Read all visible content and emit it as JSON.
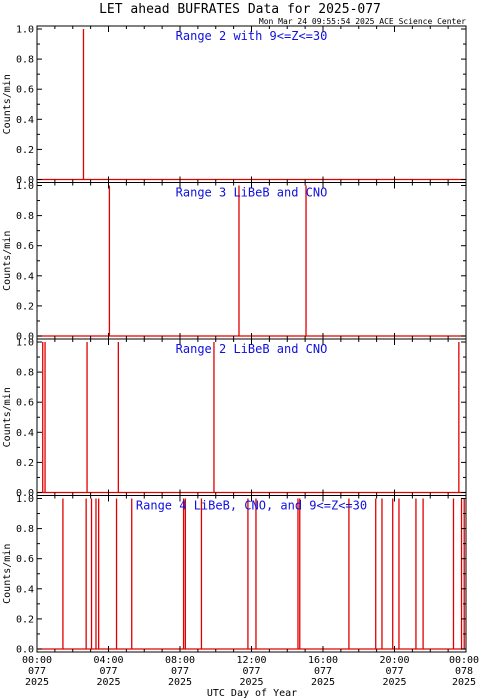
{
  "title": "LET ahead BUFRATES Data for 2025-077",
  "timestamp": "Mon Mar 24 09:55:54 2025 ACE Science Center",
  "colors": {
    "series": "#e00000",
    "panel_title": "#1010e0",
    "axes": "#000000"
  },
  "chart_data": [
    {
      "type": "line",
      "title": "Range 2 with 9<=Z<=30",
      "ylabel": "Counts/min",
      "ylim": [
        0,
        1.0
      ],
      "y_ticks": [
        "0.0",
        "0.2",
        "0.4",
        "0.6",
        "0.8",
        "1.0"
      ],
      "xlim": [
        0,
        24
      ],
      "x_unit": "hours UTC",
      "spikes": [
        {
          "x": 2.6,
          "y": 1.0
        }
      ]
    },
    {
      "type": "line",
      "title": "Range 3 LiBeB and CNO",
      "ylabel": "Counts/min",
      "ylim": [
        0,
        1.0
      ],
      "y_ticks": [
        "0.0",
        "0.2",
        "0.4",
        "0.6",
        "0.8",
        "1.0"
      ],
      "xlim": [
        0,
        24
      ],
      "x_unit": "hours UTC",
      "spikes": [
        {
          "x": 4.05,
          "y": 1.0
        },
        {
          "x": 11.3,
          "y": 1.0
        },
        {
          "x": 15.05,
          "y": 1.0
        }
      ]
    },
    {
      "type": "line",
      "title": "Range 2 LiBeB and CNO",
      "ylabel": "Counts/min",
      "ylim": [
        0,
        1.0
      ],
      "y_ticks": [
        "0.0",
        "0.2",
        "0.4",
        "0.6",
        "0.8",
        "1.0"
      ],
      "xlim": [
        0,
        24
      ],
      "x_unit": "hours UTC",
      "spikes": [
        {
          "x": 0.32,
          "y": 1.0
        },
        {
          "x": 0.45,
          "y": 1.0
        },
        {
          "x": 2.8,
          "y": 1.0
        },
        {
          "x": 4.55,
          "y": 1.0
        },
        {
          "x": 9.9,
          "y": 1.0
        },
        {
          "x": 23.6,
          "y": 1.0
        }
      ]
    },
    {
      "type": "line",
      "title": "Range 4 LiBeB, CNO, and 9<=Z<=30",
      "ylabel": "Counts/min",
      "ylim": [
        0,
        1.0
      ],
      "y_ticks": [
        "0.0",
        "0.2",
        "0.4",
        "0.6",
        "0.8",
        "1.0"
      ],
      "xlim": [
        0,
        24
      ],
      "x_unit": "hours UTC",
      "spikes": [
        {
          "x": 1.45,
          "y": 1.0
        },
        {
          "x": 2.75,
          "y": 1.0
        },
        {
          "x": 3.05,
          "y": 1.0
        },
        {
          "x": 3.3,
          "y": 1.0
        },
        {
          "x": 3.45,
          "y": 1.0
        },
        {
          "x": 4.45,
          "y": 1.0
        },
        {
          "x": 5.3,
          "y": 1.0
        },
        {
          "x": 8.2,
          "y": 1.0
        },
        {
          "x": 8.3,
          "y": 1.0
        },
        {
          "x": 9.2,
          "y": 1.0
        },
        {
          "x": 11.8,
          "y": 1.0
        },
        {
          "x": 12.25,
          "y": 1.0
        },
        {
          "x": 14.6,
          "y": 1.0
        },
        {
          "x": 14.7,
          "y": 1.0
        },
        {
          "x": 17.45,
          "y": 1.0
        },
        {
          "x": 18.95,
          "y": 1.0
        },
        {
          "x": 19.3,
          "y": 1.0
        },
        {
          "x": 19.9,
          "y": 1.0
        },
        {
          "x": 20.25,
          "y": 1.0
        },
        {
          "x": 21.2,
          "y": 1.0
        },
        {
          "x": 21.6,
          "y": 1.0
        },
        {
          "x": 23.3,
          "y": 1.0
        },
        {
          "x": 23.75,
          "y": 1.0
        },
        {
          "x": 23.9,
          "y": 1.0
        }
      ]
    }
  ],
  "x_axis": {
    "label": "UTC Day of Year",
    "ticks": [
      {
        "x": 0,
        "lines": [
          "00:00",
          "077",
          "2025"
        ]
      },
      {
        "x": 4,
        "lines": [
          "04:00",
          "077",
          "2025"
        ]
      },
      {
        "x": 8,
        "lines": [
          "08:00",
          "077",
          "2025"
        ]
      },
      {
        "x": 12,
        "lines": [
          "12:00",
          "077",
          "2025"
        ]
      },
      {
        "x": 16,
        "lines": [
          "16:00",
          "077",
          "2025"
        ]
      },
      {
        "x": 20,
        "lines": [
          "20:00",
          "077",
          "2025"
        ]
      },
      {
        "x": 24,
        "lines": [
          "00:00",
          "078",
          "2025"
        ]
      }
    ]
  }
}
